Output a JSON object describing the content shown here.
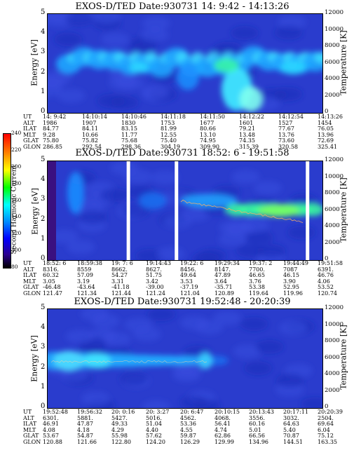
{
  "chart_data": [
    {
      "type": "heatmap",
      "title": "EXOS-D/TED   Date:930731  14: 9:42 - 14:13:26",
      "ylabel": "Energy [eV]",
      "y2label": "Temperature [K]",
      "ylim": [
        0,
        5
      ],
      "y2lim": [
        0,
        12000
      ],
      "yticks": [
        "0",
        "1",
        "2",
        "3",
        "4",
        "5"
      ],
      "y2ticks": [
        "0",
        "2000",
        "4000",
        "6000",
        "8000",
        "10000",
        "12000"
      ],
      "table": {
        "rows": [
          "UT",
          "ALT",
          "ILAT",
          "MLT",
          "GLAT",
          "GLON"
        ],
        "cols": [
          [
            "14: 9:42",
            "1986",
            "84.77",
            "9.28",
            "75.80",
            "286.85"
          ],
          [
            "14:10:14",
            "1907",
            "84.11",
            "10.66",
            "75.82",
            "292.54"
          ],
          [
            "14:10:46",
            "1830",
            "83.15",
            "11.77",
            "75.68",
            "298.36"
          ],
          [
            "14:11:18",
            "1753",
            "81.99",
            "12.55",
            "75.40",
            "304.19"
          ],
          [
            "14:11:50",
            "1677",
            "80.66",
            "13.10",
            "74.95",
            "309.90"
          ],
          [
            "14:12:22",
            "1601",
            "79.21",
            "13.48",
            "74.35",
            "315.39"
          ],
          [
            "14:12:54",
            "1527",
            "77.67",
            "13.76",
            "73.60",
            "320.58"
          ],
          [
            "14:13:26",
            "1454",
            "76.05",
            "13.96",
            "72.69",
            "325.41"
          ]
        ]
      }
    },
    {
      "type": "heatmap",
      "title": "EXOS-D/TED   Date:930731  18:52: 6 - 19:51:58",
      "ylabel": "Energy [eV]",
      "y2label": "Temperature [K]",
      "ylim": [
        0,
        5
      ],
      "y2lim": [
        0,
        12000
      ],
      "yticks": [
        "0",
        "1",
        "2",
        "3",
        "4",
        "5"
      ],
      "y2ticks": [
        "0",
        "2000",
        "4000",
        "6000",
        "8000",
        "10000",
        "12000"
      ],
      "colorbar": {
        "label": "Second Harmonic Current",
        "ticks": [
          "80",
          "100",
          "120",
          "140",
          "160",
          "180",
          "200",
          "220",
          "240"
        ]
      },
      "table": {
        "rows": [
          "UT",
          "ALT",
          "ILAT",
          "MLT",
          "GLAT",
          "GLON"
        ],
        "cols": [
          [
            "18:52: 6",
            "8316.",
            "60.32",
            "3.05",
            "-46.48",
            "121.47"
          ],
          [
            "18:59:38",
            "8559",
            "57.09",
            "3.19",
            "-43.64",
            "121.34"
          ],
          [
            "19: 7: 6",
            "8662.",
            "54.27",
            "3.31",
            "-41.18",
            "121.44"
          ],
          [
            "19:14:43",
            "8627.",
            "51.75",
            "3.42",
            "-39.00",
            "121.24"
          ],
          [
            "19:22: 6",
            "8456.",
            "49.64",
            "3.53",
            "-37.19",
            "121.04"
          ],
          [
            "19:29:34",
            "8147.",
            "47.89",
            "3.64",
            "-35.71",
            "120.89"
          ],
          [
            "19:37: 2",
            "7700.",
            "46.65",
            "3.76",
            "53.38",
            "119.64"
          ],
          [
            "19:44:49",
            "7087",
            "46.15",
            "3.90",
            "52.95",
            "119.96"
          ],
          [
            "19:51:58",
            "6391.",
            "46.76",
            "4.06",
            "53.52",
            "120.74"
          ]
        ]
      }
    },
    {
      "type": "heatmap",
      "title": "EXOS-D/TED   Date:930731  19:52:48 - 20:20:39",
      "ylabel": "Energy [eV]",
      "y2label": "Temperature [K]",
      "ylim": [
        0,
        5
      ],
      "y2lim": [
        0,
        12000
      ],
      "yticks": [
        "0",
        "1",
        "2",
        "3",
        "4",
        "5"
      ],
      "y2ticks": [
        "0",
        "2000",
        "4000",
        "6000",
        "8000",
        "10000",
        "12000"
      ],
      "table": {
        "rows": [
          "UT",
          "ALT",
          "ILAT",
          "MLT",
          "GLAT",
          "GLON"
        ],
        "cols": [
          [
            "19:52:48",
            "6301.",
            "46.91",
            "4.08",
            "53.67",
            "120.88"
          ],
          [
            "19:56:32",
            "5881.",
            "47.87",
            "4.18",
            "54.87",
            "121.66"
          ],
          [
            "20: 0:16",
            "5427.",
            "49.33",
            "4.29",
            "55.98",
            "122.80"
          ],
          [
            "20: 3:27",
            "5016.",
            "51.04",
            "4.40",
            "57.62",
            "124.20"
          ],
          [
            "20: 6:47",
            "4562.",
            "53.36",
            "4.55",
            "59.87",
            "126.29"
          ],
          [
            "20:10:15",
            "4068.",
            "56.41",
            "4.74",
            "62.86",
            "129.99"
          ],
          [
            "20:13:43",
            "3556.",
            "60.16",
            "5.01",
            "66.56",
            "134.96"
          ],
          [
            "20:17:11",
            "3032.",
            "64.63",
            "5.40",
            "70.87",
            "144.51"
          ],
          [
            "20:20:39",
            "2504.",
            "69.64",
            "6.04",
            "75.12",
            "163.35"
          ]
        ]
      }
    }
  ]
}
